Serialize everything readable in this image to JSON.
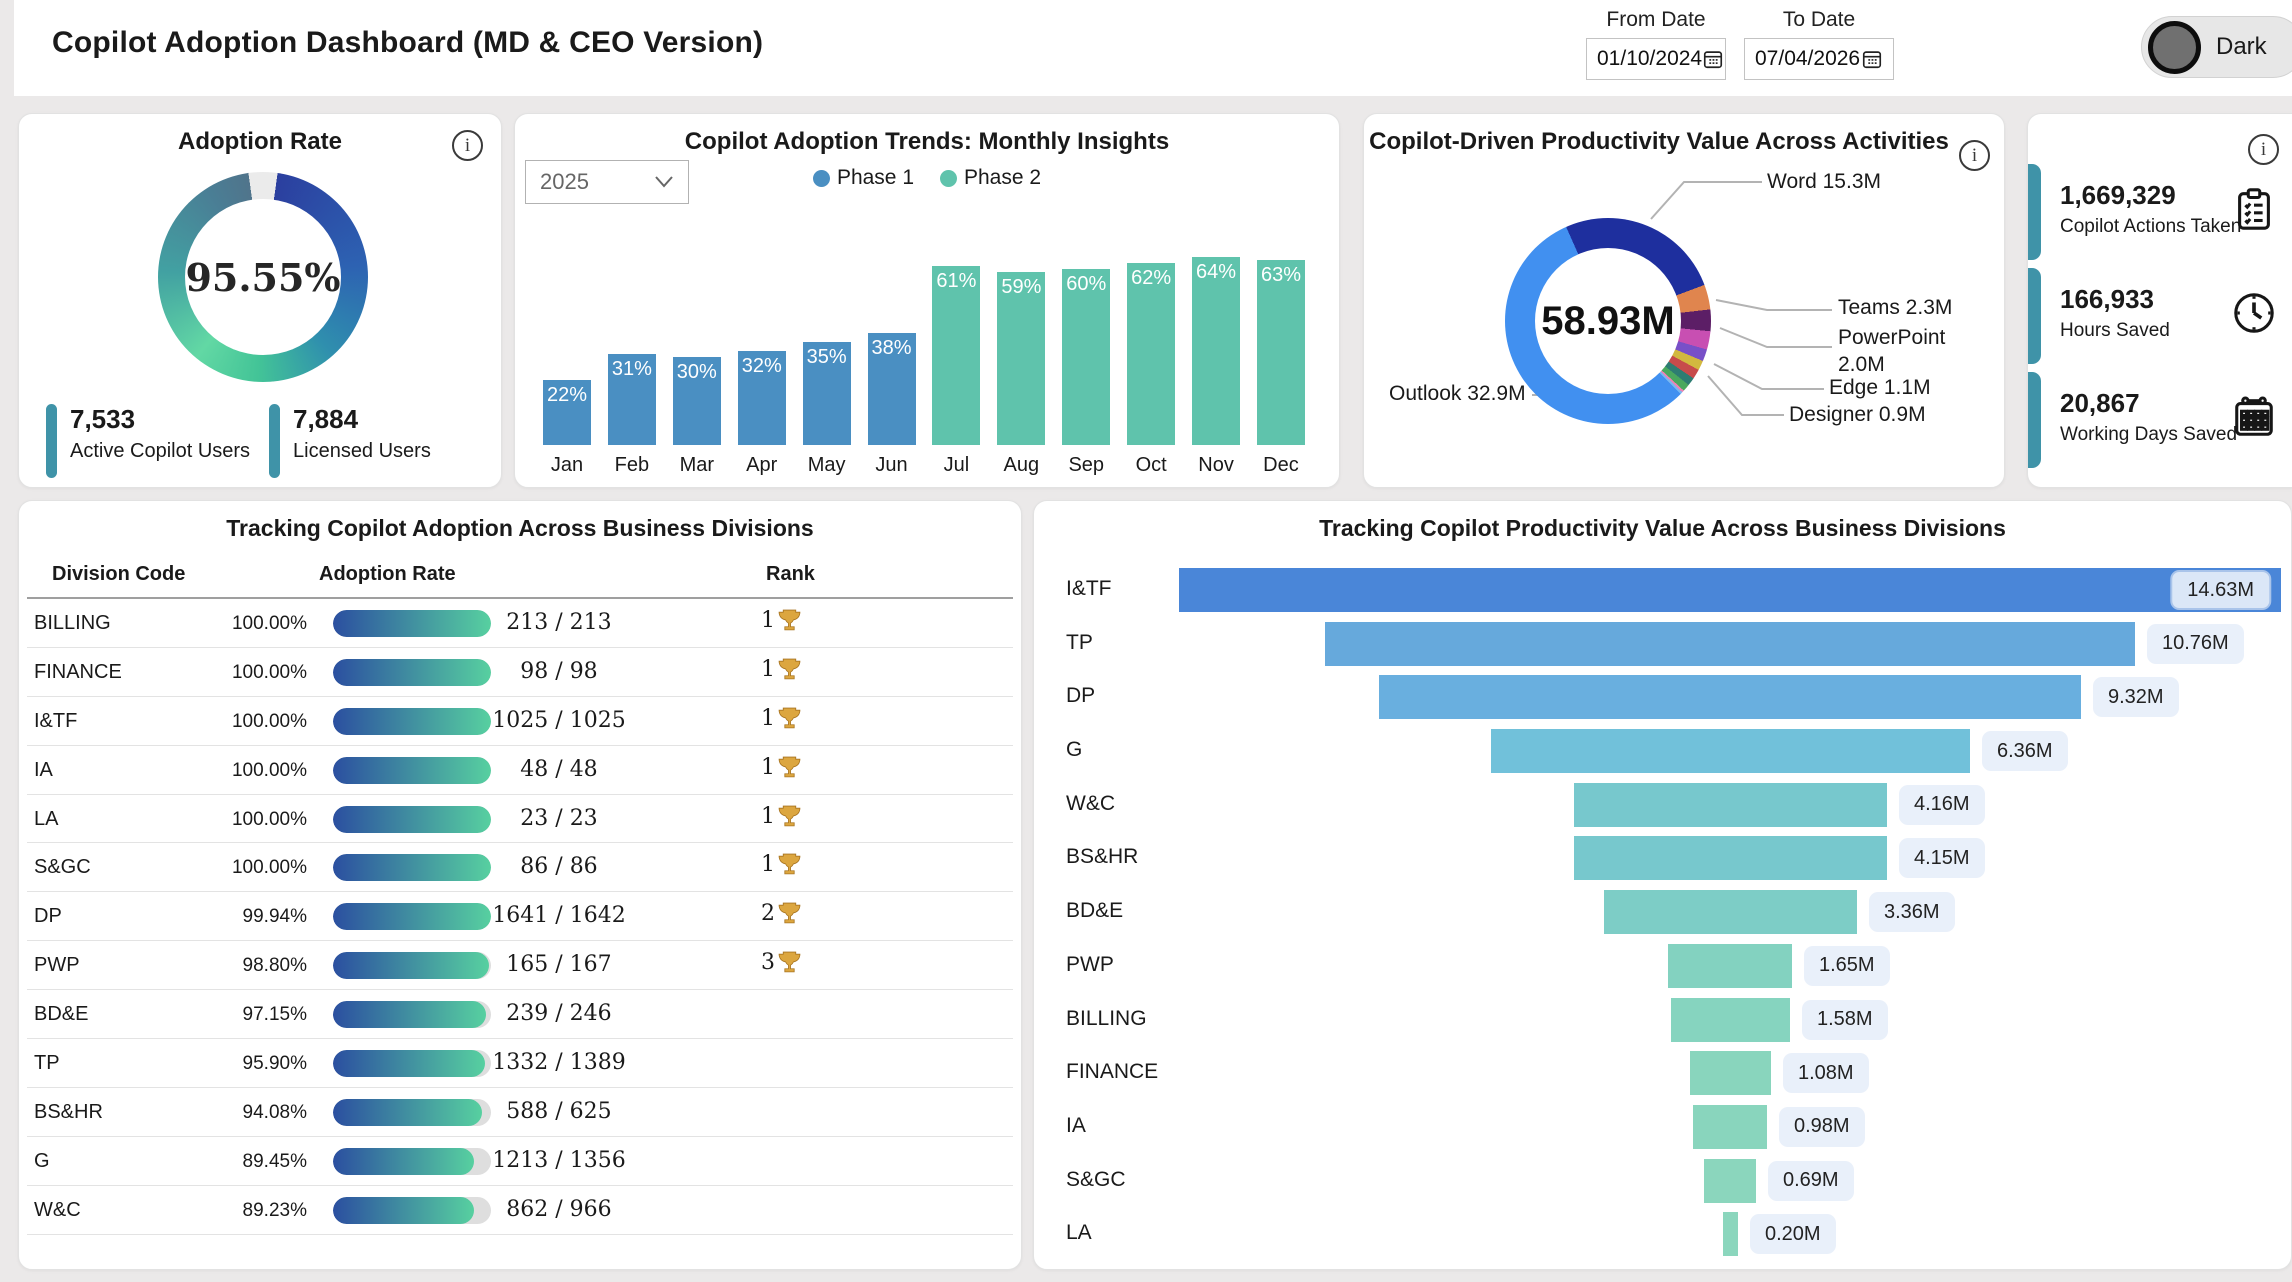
{
  "header": {
    "title": "Copilot Adoption Dashboard (MD & CEO Version)",
    "from_date_label": "From Date",
    "from_date_value": "01/10/2024",
    "to_date_label": "To Date",
    "to_date_value": "07/04/2026",
    "theme_toggle_label": "Dark"
  },
  "adoption_card": {
    "title": "Adoption Rate",
    "rate_display": "95.55%",
    "rate_percent": 95.55,
    "stats": [
      {
        "value": "7,533",
        "label": "Active Copilot Users"
      },
      {
        "value": "7,884",
        "label": "Licensed Users"
      }
    ]
  },
  "trends_card": {
    "title": "Copilot Adoption Trends: Monthly Insights",
    "year_filter": "2025",
    "legend": [
      {
        "label": "Phase 1",
        "color": "#4a8fc2"
      },
      {
        "label": "Phase 2",
        "color": "#5fc3ac"
      }
    ],
    "chart_data": {
      "type": "bar",
      "categories": [
        "Jan",
        "Feb",
        "Mar",
        "Apr",
        "May",
        "Jun",
        "Jul",
        "Aug",
        "Sep",
        "Oct",
        "Nov",
        "Dec"
      ],
      "values": [
        22,
        31,
        30,
        32,
        35,
        38,
        61,
        59,
        60,
        62,
        64,
        63
      ],
      "labels": [
        "22%",
        "31%",
        "30%",
        "32%",
        "35%",
        "38%",
        "61%",
        "59%",
        "60%",
        "62%",
        "64%",
        "63%"
      ],
      "series_phase": [
        1,
        1,
        1,
        1,
        1,
        1,
        2,
        2,
        2,
        2,
        2,
        2
      ],
      "ylim": [
        0,
        64
      ]
    }
  },
  "activities_card": {
    "title": "Copilot-Driven Productivity Value Across Activities",
    "center_value": "58.93M",
    "chart_data": {
      "type": "pie",
      "total_label": "58.93M",
      "slices": [
        {
          "name": "Word",
          "label": "Word 15.3M",
          "value": 15.3,
          "color": "#1e2f9e",
          "labeled": true
        },
        {
          "name": "Teams",
          "label": "Teams 2.3M",
          "value": 2.3,
          "color": "#e0854e",
          "labeled": true
        },
        {
          "name": "PowerPoint",
          "label": "PowerPoint 2.0M",
          "value": 2.0,
          "color": "#5c1e66",
          "labeled": true
        },
        {
          "name": "other-1",
          "label": "",
          "value": 1.7,
          "color": "#c84fb2",
          "labeled": false
        },
        {
          "name": "Edge",
          "label": "Edge 1.1M",
          "value": 1.1,
          "color": "#7850c8",
          "labeled": true
        },
        {
          "name": "Designer",
          "label": "Designer 0.9M",
          "value": 0.9,
          "color": "#d2b83f",
          "labeled": true
        },
        {
          "name": "other-2",
          "label": "",
          "value": 0.9,
          "color": "#c74b4b",
          "labeled": false
        },
        {
          "name": "other-3",
          "label": "",
          "value": 0.75,
          "color": "#2e7d72",
          "labeled": false
        },
        {
          "name": "other-4",
          "label": "",
          "value": 0.68,
          "color": "#4aa85e",
          "labeled": false
        },
        {
          "name": "other-5",
          "label": "",
          "value": 0.2,
          "color": "#ef82b4",
          "labeled": false
        },
        {
          "name": "other-6",
          "label": "",
          "value": 0.2,
          "color": "#7ab8f0",
          "labeled": false
        },
        {
          "name": "Outlook",
          "label": "Outlook 32.9M",
          "value": 32.9,
          "color": "#4190f0",
          "labeled": true
        }
      ]
    }
  },
  "kpi_card": {
    "items": [
      {
        "value": "1,669,329",
        "label": "Copilot Actions Taken",
        "icon": "clipboard-check-icon"
      },
      {
        "value": "166,933",
        "label": "Hours Saved",
        "icon": "clock-icon"
      },
      {
        "value": "20,867",
        "label": "Working Days Saved",
        "icon": "calendar-icon"
      }
    ]
  },
  "table_card": {
    "title": "Tracking Copilot Adoption Across Business Divisions",
    "columns": [
      "Division Code",
      "Adoption Rate",
      "Rank"
    ],
    "rows": [
      {
        "division": "BILLING",
        "rate": "100.00%",
        "rate_percent": 100.0,
        "ratio": "213 / 213",
        "rank": "1"
      },
      {
        "division": "FINANCE",
        "rate": "100.00%",
        "rate_percent": 100.0,
        "ratio": "98 / 98",
        "rank": "1"
      },
      {
        "division": "I&TF",
        "rate": "100.00%",
        "rate_percent": 100.0,
        "ratio": "1025 / 1025",
        "rank": "1"
      },
      {
        "division": "IA",
        "rate": "100.00%",
        "rate_percent": 100.0,
        "ratio": "48 / 48",
        "rank": "1"
      },
      {
        "division": "LA",
        "rate": "100.00%",
        "rate_percent": 100.0,
        "ratio": "23 / 23",
        "rank": "1"
      },
      {
        "division": "S&GC",
        "rate": "100.00%",
        "rate_percent": 100.0,
        "ratio": "86 / 86",
        "rank": "1"
      },
      {
        "division": "DP",
        "rate": "99.94%",
        "rate_percent": 99.94,
        "ratio": "1641 / 1642",
        "rank": "2"
      },
      {
        "division": "PWP",
        "rate": "98.80%",
        "rate_percent": 98.8,
        "ratio": "165 / 167",
        "rank": "3"
      },
      {
        "division": "BD&E",
        "rate": "97.15%",
        "rate_percent": 97.15,
        "ratio": "239 / 246",
        "rank": ""
      },
      {
        "division": "TP",
        "rate": "95.90%",
        "rate_percent": 95.9,
        "ratio": "1332 / 1389",
        "rank": ""
      },
      {
        "division": "BS&HR",
        "rate": "94.08%",
        "rate_percent": 94.08,
        "ratio": "588 / 625",
        "rank": ""
      },
      {
        "division": "G",
        "rate": "89.45%",
        "rate_percent": 89.45,
        "ratio": "1213 / 1356",
        "rank": ""
      },
      {
        "division": "W&C",
        "rate": "89.23%",
        "rate_percent": 89.23,
        "ratio": "862 / 966",
        "rank": ""
      }
    ]
  },
  "funnel_card": {
    "title": "Tracking Copilot Productivity Value Across Business Divisions",
    "chart_data": {
      "type": "bar",
      "orientation": "centered-horizontal-funnel",
      "categories": [
        "I&TF",
        "TP",
        "DP",
        "G",
        "W&C",
        "BS&HR",
        "BD&E",
        "PWP",
        "BILLING",
        "FINANCE",
        "IA",
        "S&GC",
        "LA"
      ],
      "values": [
        14.63,
        10.76,
        9.32,
        6.36,
        4.16,
        4.15,
        3.36,
        1.65,
        1.58,
        1.08,
        0.98,
        0.69,
        0.2
      ],
      "labels": [
        "14.63M",
        "10.76M",
        "9.32M",
        "6.36M",
        "4.16M",
        "4.15M",
        "3.36M",
        "1.65M",
        "1.58M",
        "1.08M",
        "0.98M",
        "0.69M",
        "0.20M"
      ],
      "colors": [
        "#4a86d8",
        "#66a9dc",
        "#69afdf",
        "#71c1da",
        "#77c8cd",
        "#77c8cd",
        "#7dcdc6",
        "#83d2c0",
        "#86d4bf",
        "#89d5bd",
        "#89d5bd",
        "#8bd6bd",
        "#8bd6bd"
      ],
      "selected_index": 0
    }
  },
  "colors": {
    "accent_teal": "#3f93a8",
    "phase1": "#4a8fc2",
    "phase2": "#5fc3ac",
    "pill_gradient_start": "#2b4fa0",
    "pill_gradient_end": "#57d0a0",
    "value_chip_bg": "#e9f0fa",
    "selected_chip_bg": "#dbe7f7"
  }
}
